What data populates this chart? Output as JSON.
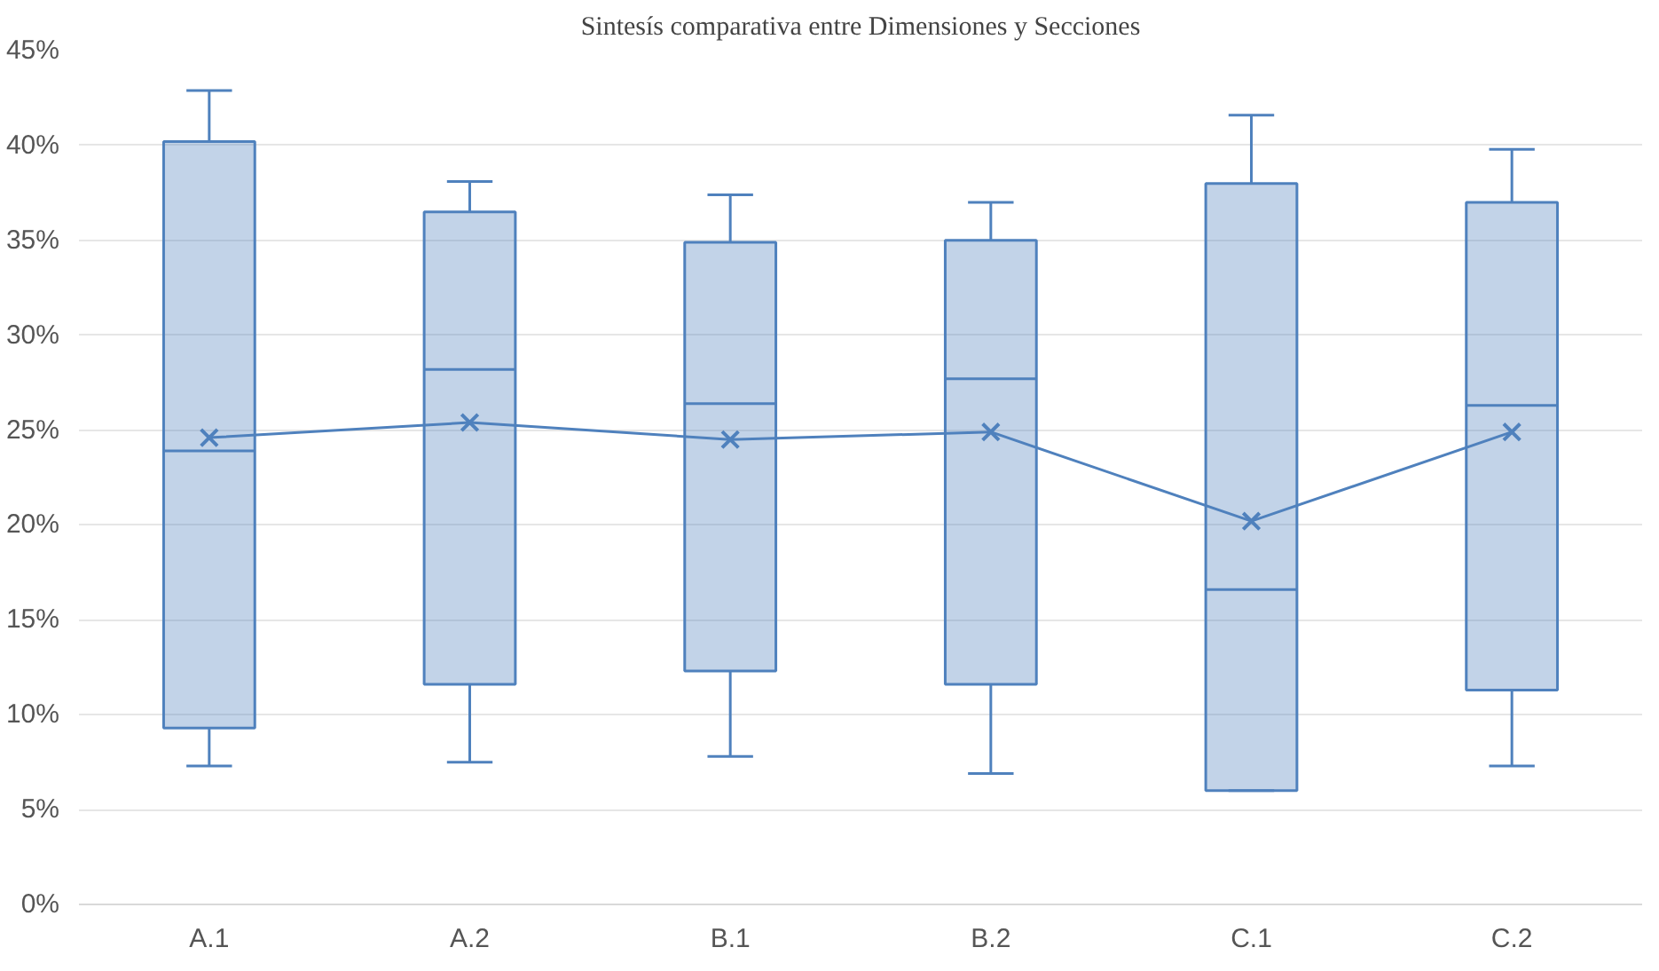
{
  "chart_data": {
    "type": "box",
    "title": "Sintesís comparativa entre Dimensiones y Secciones",
    "categories": [
      "A.1",
      "A.2",
      "B.1",
      "B.2",
      "C.1",
      "C.2"
    ],
    "ylim": [
      0,
      45
    ],
    "yticks": [
      {
        "value": 0,
        "label": "0%"
      },
      {
        "value": 5,
        "label": "5%"
      },
      {
        "value": 10,
        "label": "10%"
      },
      {
        "value": 15,
        "label": "15%"
      },
      {
        "value": 20,
        "label": "20%"
      },
      {
        "value": 25,
        "label": "25%"
      },
      {
        "value": 30,
        "label": "30%"
      },
      {
        "value": 35,
        "label": "35%"
      },
      {
        "value": 40,
        "label": "40%"
      },
      {
        "value": 45,
        "label": "45%"
      }
    ],
    "grid": "y",
    "series": [
      {
        "color": "#4f81bd",
        "boxes": [
          {
            "low": 7.3,
            "q1": 9.3,
            "median": 23.9,
            "q3": 40.2,
            "high": 42.9
          },
          {
            "low": 7.5,
            "q1": 11.6,
            "median": 28.2,
            "q3": 36.5,
            "high": 38.1
          },
          {
            "low": 7.8,
            "q1": 12.3,
            "median": 26.4,
            "q3": 34.9,
            "high": 37.4
          },
          {
            "low": 6.9,
            "q1": 11.6,
            "median": 27.7,
            "q3": 35.0,
            "high": 37.0
          },
          {
            "low": 6.0,
            "q1": 6.0,
            "median": 16.6,
            "q3": 38.0,
            "high": 41.6
          },
          {
            "low": 7.3,
            "q1": 11.3,
            "median": 26.3,
            "q3": 37.0,
            "high": 39.8
          }
        ]
      },
      {
        "type": "line",
        "color": "#4f81bd",
        "marker": "cross",
        "values": [
          24.6,
          25.4,
          24.5,
          24.9,
          20.2,
          24.9
        ]
      }
    ]
  }
}
